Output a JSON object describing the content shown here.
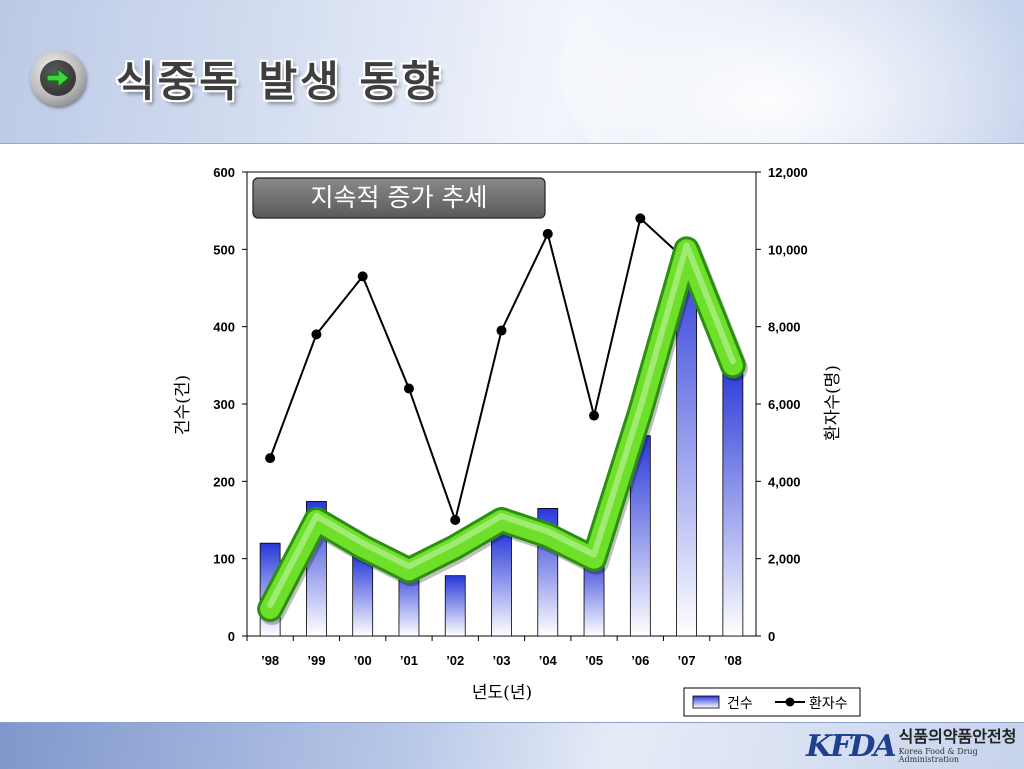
{
  "header": {
    "title": "식중독 발생 동향"
  },
  "footer": {
    "logo_mark": "KFDA",
    "logo_korean": "식품의약품안전청",
    "logo_english": "Korea Food & Drug Administration"
  },
  "colors": {
    "bar_top": "#2838d8",
    "bar_bottom": "#ffffff",
    "line": "#000000",
    "trend_arrow": "#6ee02a",
    "trend_outline": "#2d8f12"
  },
  "chart_data": {
    "type": "bar",
    "callout": "지속적 증가 추세",
    "categories": [
      "’98",
      "’99",
      "’00",
      "’01",
      "’02",
      "’03",
      "’04",
      "’05",
      "’06",
      "’07",
      "’08"
    ],
    "xlabel": "년도(년)",
    "ylabel_left": "건수(건)",
    "ylabel_right": "환자수(명)",
    "ylim_left": [
      0,
      600
    ],
    "ylim_right": [
      0,
      12000
    ],
    "yticks_left": [
      "0",
      "100",
      "200",
      "300",
      "400",
      "500",
      "600"
    ],
    "yticks_right": [
      "0",
      "2,000",
      "4,000",
      "6,000",
      "8,000",
      "10,000",
      "12,000"
    ],
    "legend_position": "bottom-right",
    "series": [
      {
        "name": "건수",
        "type": "bar",
        "axis": "left",
        "values": [
          120,
          174,
          104,
          93,
          78,
          135,
          165,
          109,
          259,
          510,
          354
        ]
      },
      {
        "name": "환자수",
        "type": "line",
        "axis": "right",
        "values": [
          4600,
          7800,
          9300,
          6400,
          3000,
          7900,
          10400,
          5700,
          10800,
          9700,
          null
        ]
      }
    ],
    "trend_arrow_points": [
      [
        0,
        700
      ],
      [
        1,
        3000
      ],
      [
        2,
        2300
      ],
      [
        3,
        1700
      ],
      [
        4,
        2300
      ],
      [
        5,
        3000
      ],
      [
        6,
        2600
      ],
      [
        7,
        2000
      ],
      [
        8,
        5800
      ],
      [
        9,
        10000
      ],
      [
        10,
        7000
      ]
    ]
  }
}
